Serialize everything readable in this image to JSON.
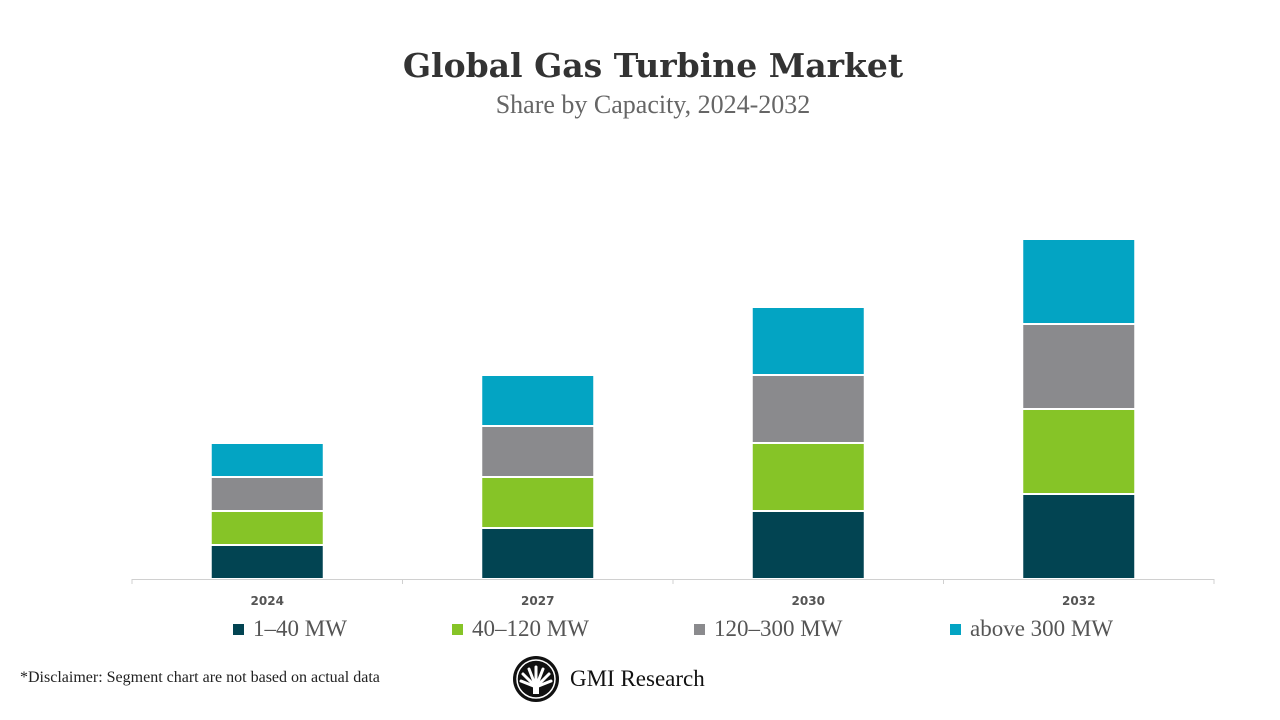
{
  "chart_data": {
    "type": "bar",
    "stacked": true,
    "title": "Global Gas Turbine Market",
    "subtitle": "Share by Capacity, 2024-2032",
    "categories": [
      "2024",
      "2027",
      "2030",
      "2032"
    ],
    "series": [
      {
        "name": "1–40 MW",
        "color": "#024452",
        "values": [
          2,
          3,
          4,
          5
        ]
      },
      {
        "name": "40–120 MW",
        "color": "#86c427",
        "values": [
          2,
          3,
          4,
          5
        ]
      },
      {
        "name": "120–300 MW",
        "color": "#8a8a8d",
        "values": [
          2,
          3,
          4,
          5
        ]
      },
      {
        "name": "above 300 MW",
        "color": "#03a4c3",
        "values": [
          2,
          3,
          4,
          5
        ]
      }
    ],
    "xlabel": "",
    "ylabel": "",
    "ylim": [
      0,
      20
    ],
    "y_axis_visible": false,
    "grid": false,
    "legend_position": "bottom"
  },
  "footer": {
    "disclaimer": "*Disclaimer:  Segment chart are not based on actual data",
    "brand": "GMI Research"
  }
}
